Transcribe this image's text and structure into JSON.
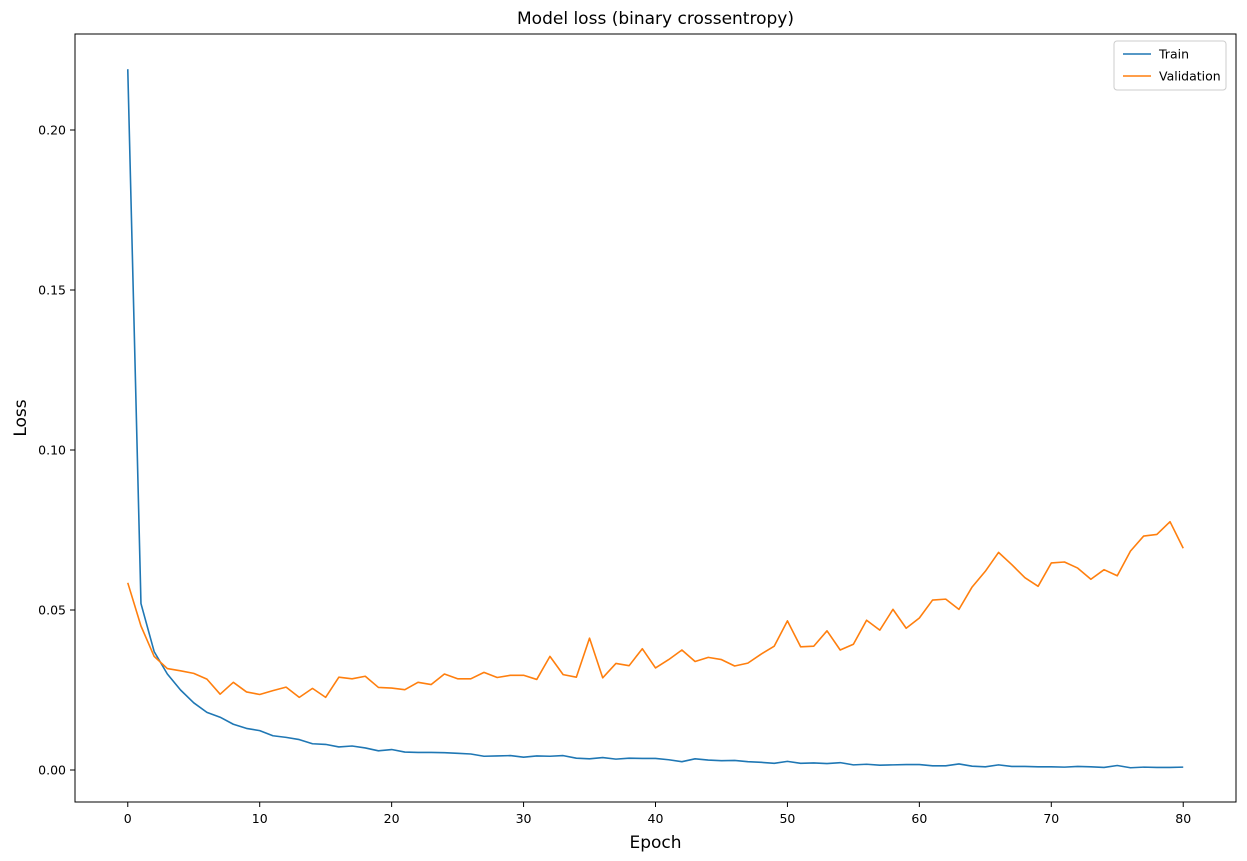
{
  "chart_data": {
    "type": "line",
    "title": "Model loss (binary crossentropy)",
    "xlabel": "Epoch",
    "ylabel": "Loss",
    "xlim": [
      -4,
      84
    ],
    "ylim": [
      -0.01,
      0.23
    ],
    "xticks": [
      0,
      10,
      20,
      30,
      40,
      50,
      60,
      70,
      80
    ],
    "yticks": [
      0.0,
      0.05,
      0.1,
      0.15,
      0.2
    ],
    "ytick_labels": [
      "0.00",
      "0.05",
      "0.10",
      "0.15",
      "0.20"
    ],
    "grid": false,
    "legend_position": "top-right",
    "series": [
      {
        "name": "Train",
        "color": "#1f77b4",
        "values": [
          0.219,
          0.052,
          0.037,
          0.03,
          0.025,
          0.021,
          0.018,
          0.0165,
          0.0143,
          0.013,
          0.0123,
          0.0107,
          0.0102,
          0.0095,
          0.0082,
          0.008,
          0.0072,
          0.0075,
          0.0069,
          0.006,
          0.0064,
          0.0056,
          0.0055,
          0.0055,
          0.0054,
          0.0052,
          0.005,
          0.0043,
          0.0044,
          0.0045,
          0.004,
          0.0044,
          0.0043,
          0.0045,
          0.0037,
          0.0035,
          0.0039,
          0.0034,
          0.0037,
          0.0036,
          0.0036,
          0.0032,
          0.0026,
          0.0035,
          0.0031,
          0.0029,
          0.003,
          0.0026,
          0.0024,
          0.0021,
          0.0027,
          0.0021,
          0.0022,
          0.002,
          0.0023,
          0.0016,
          0.0018,
          0.0015,
          0.0016,
          0.0017,
          0.0017,
          0.0013,
          0.0013,
          0.0019,
          0.0012,
          0.001,
          0.0016,
          0.0011,
          0.0011,
          0.001,
          0.001,
          0.0009,
          0.0011,
          0.001,
          0.0008,
          0.0014,
          0.0007,
          0.0009,
          0.0008,
          0.0008,
          0.0009
        ]
      },
      {
        "name": "Validation",
        "color": "#ff7f0e",
        "values": [
          0.0585,
          0.045,
          0.0355,
          0.0317,
          0.031,
          0.0302,
          0.0284,
          0.0237,
          0.0274,
          0.0244,
          0.0236,
          0.0248,
          0.0259,
          0.0227,
          0.0255,
          0.0227,
          0.029,
          0.0285,
          0.0293,
          0.0258,
          0.0256,
          0.0251,
          0.0274,
          0.0267,
          0.03,
          0.0285,
          0.0285,
          0.0305,
          0.0289,
          0.0296,
          0.0296,
          0.0283,
          0.0355,
          0.0298,
          0.029,
          0.0412,
          0.0288,
          0.0333,
          0.0326,
          0.0379,
          0.0319,
          0.0345,
          0.0375,
          0.0339,
          0.0352,
          0.0345,
          0.0325,
          0.0334,
          0.0362,
          0.0387,
          0.0466,
          0.0385,
          0.0387,
          0.0435,
          0.0375,
          0.0393,
          0.0468,
          0.0437,
          0.0502,
          0.0443,
          0.0475,
          0.0531,
          0.0534,
          0.0502,
          0.0572,
          0.0621,
          0.068,
          0.0642,
          0.0601,
          0.0574,
          0.0647,
          0.065,
          0.0631,
          0.0596,
          0.0626,
          0.0607,
          0.0684,
          0.0731,
          0.0736,
          0.0776,
          0.0693
        ]
      }
    ]
  }
}
